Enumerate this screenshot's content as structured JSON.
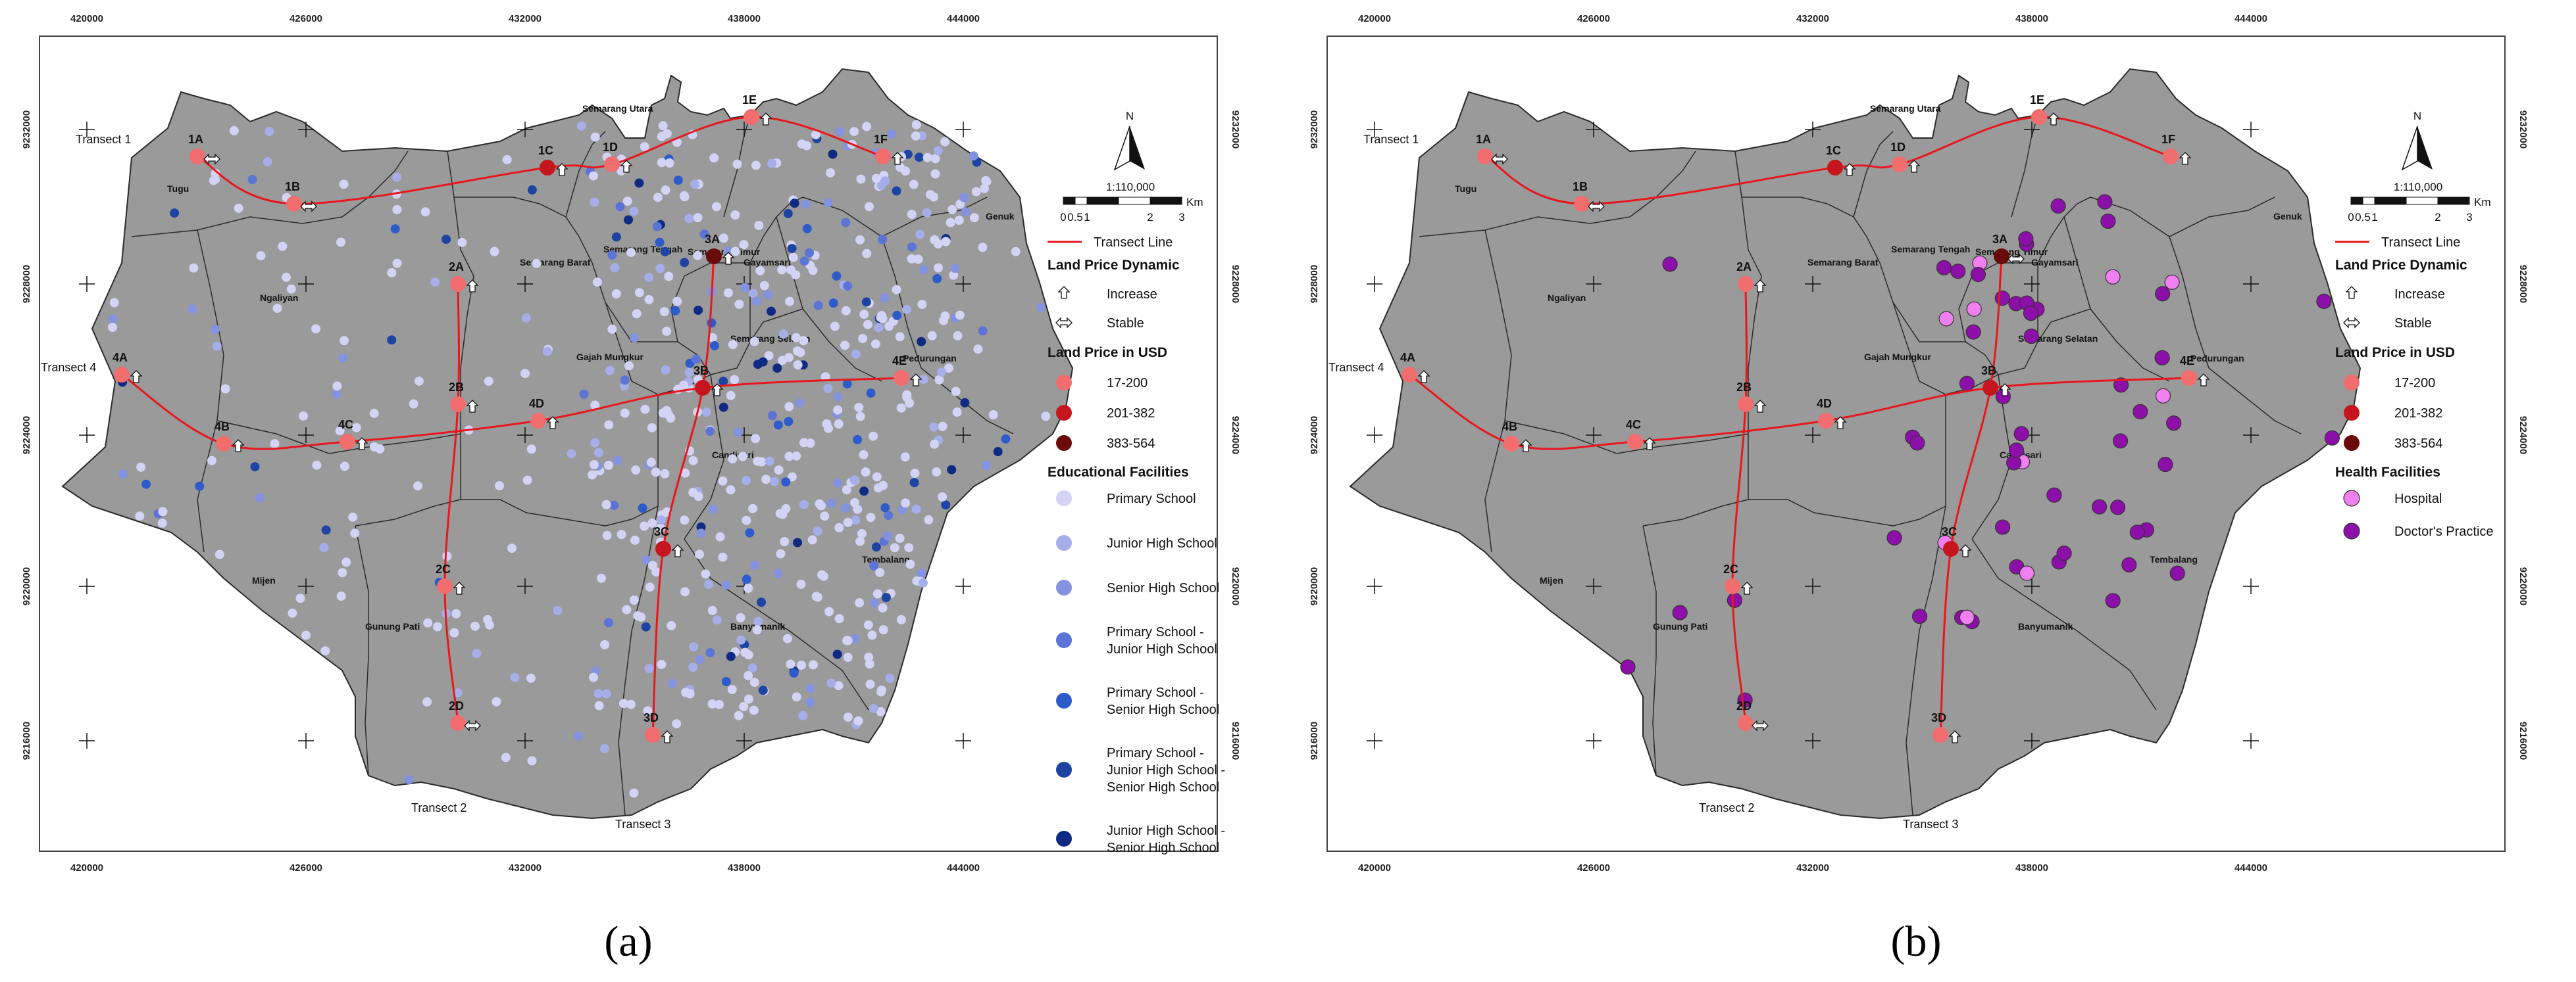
{
  "panels": [
    {
      "id": "a",
      "caption": "(a)",
      "x_ticks": [
        "420000",
        "426000",
        "432000",
        "438000",
        "444000"
      ],
      "y_ticks": [
        "9232000",
        "9228000",
        "9224000",
        "9220000",
        "9216000"
      ],
      "districts": [
        "Tugu",
        "Ngaliyan",
        "Mijen",
        "Gunung Pati",
        "Semarang Barat",
        "Semarang Utara",
        "Semarang Tengah",
        "Semarang Timur",
        "Gayamsari",
        "Gajah Mungkur",
        "Semarang Selatan",
        "Candisari",
        "Pedurungan",
        "Genuk",
        "Tembalang",
        "Banyumanik"
      ],
      "transect_labels": [
        "Transect 1",
        "Transect 2",
        "Transect 3",
        "Transect 4"
      ],
      "points": [
        {
          "label": "1A",
          "price_class": 0,
          "dynamic": "stable"
        },
        {
          "label": "1B",
          "price_class": 0,
          "dynamic": "stable"
        },
        {
          "label": "1C",
          "price_class": 1,
          "dynamic": "increase"
        },
        {
          "label": "1D",
          "price_class": 0,
          "dynamic": "increase"
        },
        {
          "label": "1E",
          "price_class": 0,
          "dynamic": "increase"
        },
        {
          "label": "1F",
          "price_class": 0,
          "dynamic": "increase"
        },
        {
          "label": "2A",
          "price_class": 0,
          "dynamic": "increase"
        },
        {
          "label": "2B",
          "price_class": 0,
          "dynamic": "increase"
        },
        {
          "label": "2C",
          "price_class": 0,
          "dynamic": "increase"
        },
        {
          "label": "2D",
          "price_class": 0,
          "dynamic": "stable"
        },
        {
          "label": "3A",
          "price_class": 2,
          "dynamic": "increase"
        },
        {
          "label": "3B",
          "price_class": 1,
          "dynamic": "increase"
        },
        {
          "label": "3C",
          "price_class": 1,
          "dynamic": "increase"
        },
        {
          "label": "3D",
          "price_class": 0,
          "dynamic": "increase"
        },
        {
          "label": "4A",
          "price_class": 0,
          "dynamic": "increase"
        },
        {
          "label": "4B",
          "price_class": 0,
          "dynamic": "increase"
        },
        {
          "label": "4C",
          "price_class": 0,
          "dynamic": "increase"
        },
        {
          "label": "4D",
          "price_class": 0,
          "dynamic": "increase"
        },
        {
          "label": "4E",
          "price_class": 0,
          "dynamic": "increase"
        }
      ],
      "north_label": "N",
      "scale": {
        "ratio": "1:110,000",
        "unit": "Km",
        "ticks": [
          "0",
          "0.5",
          "1",
          "2",
          "3"
        ]
      },
      "legend": {
        "transect": "Transect Line",
        "dynamic_title": "Land Price Dynamic",
        "increase": "Increase",
        "stable": "Stable",
        "price_title": "Land Price in USD",
        "prices": [
          {
            "label": "17-200",
            "color": "#f26d6d"
          },
          {
            "label": "201-382",
            "color": "#c4161c"
          },
          {
            "label": "383-564",
            "color": "#6b0a0a"
          }
        ],
        "facility_title": "Educational Facilities",
        "facilities": [
          {
            "label": "Primary School",
            "color": "#d3d3f5"
          },
          {
            "label": "Junior High School",
            "color": "#a5aee8"
          },
          {
            "label": "Senior High School",
            "color": "#8492e0"
          },
          {
            "label": "Primary School - Junior High School",
            "color": "#5c74d6"
          },
          {
            "label": "Primary School - Senior High School",
            "color": "#2d5bc9"
          },
          {
            "label": "Primary School - Junior High School - Senior High School",
            "color": "#1d43a3"
          },
          {
            "label": "Junior High School - Senior High School",
            "color": "#0f2a82"
          }
        ]
      }
    },
    {
      "id": "b",
      "caption": "(b)",
      "x_ticks": [
        "420000",
        "426000",
        "432000",
        "438000",
        "444000"
      ],
      "y_ticks": [
        "9232000",
        "9228000",
        "9224000",
        "9220000",
        "9216000"
      ],
      "districts": [
        "Tugu",
        "Ngaliyan",
        "Mijen",
        "Gunung Pati",
        "Semarang Barat",
        "Semarang Utara",
        "Semarang Tengah",
        "Semarang Timur",
        "Gayamsari",
        "Gajah Mungkur",
        "Semarang Selatan",
        "Candisari",
        "Pedurungan",
        "Genuk",
        "Tembalang",
        "Banyumanik"
      ],
      "transect_labels": [
        "Transect 1",
        "Transect 2",
        "Transect 3",
        "Transect 4"
      ],
      "points": [
        {
          "label": "1A",
          "price_class": 0,
          "dynamic": "stable"
        },
        {
          "label": "1B",
          "price_class": 0,
          "dynamic": "stable"
        },
        {
          "label": "1C",
          "price_class": 1,
          "dynamic": "increase"
        },
        {
          "label": "1D",
          "price_class": 0,
          "dynamic": "increase"
        },
        {
          "label": "1E",
          "price_class": 0,
          "dynamic": "increase"
        },
        {
          "label": "1F",
          "price_class": 0,
          "dynamic": "increase"
        },
        {
          "label": "2A",
          "price_class": 0,
          "dynamic": "increase"
        },
        {
          "label": "2B",
          "price_class": 0,
          "dynamic": "increase"
        },
        {
          "label": "2C",
          "price_class": 0,
          "dynamic": "increase"
        },
        {
          "label": "2D",
          "price_class": 0,
          "dynamic": "stable"
        },
        {
          "label": "3A",
          "price_class": 2,
          "dynamic": "stable"
        },
        {
          "label": "3B",
          "price_class": 1,
          "dynamic": "increase"
        },
        {
          "label": "3C",
          "price_class": 1,
          "dynamic": "increase"
        },
        {
          "label": "3D",
          "price_class": 0,
          "dynamic": "increase"
        },
        {
          "label": "4A",
          "price_class": 0,
          "dynamic": "increase"
        },
        {
          "label": "4B",
          "price_class": 0,
          "dynamic": "increase"
        },
        {
          "label": "4C",
          "price_class": 0,
          "dynamic": "increase"
        },
        {
          "label": "4D",
          "price_class": 0,
          "dynamic": "increase"
        },
        {
          "label": "4E",
          "price_class": 0,
          "dynamic": "increase"
        }
      ],
      "north_label": "N",
      "scale": {
        "ratio": "1:110,000",
        "unit": "Km",
        "ticks": [
          "0",
          "0.5",
          "1",
          "2",
          "3"
        ]
      },
      "legend": {
        "transect": "Transect Line",
        "dynamic_title": "Land Price Dynamic",
        "increase": "Increase",
        "stable": "Stable",
        "price_title": "Land Price in USD",
        "prices": [
          {
            "label": "17-200",
            "color": "#f26d6d"
          },
          {
            "label": "201-382",
            "color": "#c4161c"
          },
          {
            "label": "383-564",
            "color": "#6b0a0a"
          }
        ],
        "facility_title": "Health Facilities",
        "facilities": [
          {
            "label": "Hospital",
            "color": "#f080f0"
          },
          {
            "label": "Doctor's Practice",
            "color": "#8b0fa8"
          }
        ]
      }
    }
  ],
  "colors": {
    "land": "#9a9a9a",
    "boundary": "#2a2a2a",
    "transect": "#e8161c"
  }
}
